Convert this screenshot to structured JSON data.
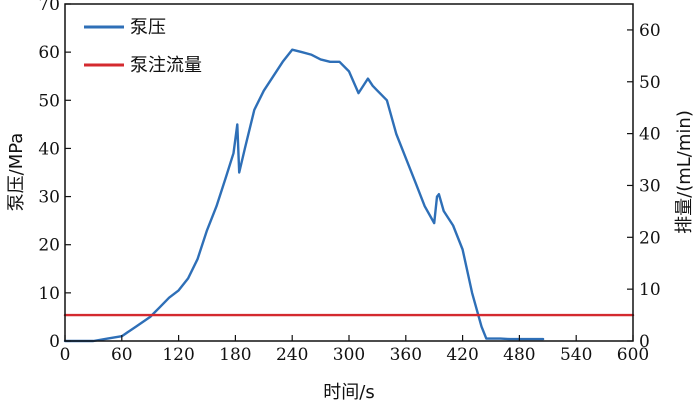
{
  "chart_data": {
    "type": "line",
    "xlabel": "时间/s",
    "ylabel": "泵压/MPa",
    "y2label": "排量/(mL/min)",
    "xlim": [
      0,
      600
    ],
    "ylim": [
      0,
      70
    ],
    "y2lim": [
      0,
      65
    ],
    "x_ticks": [
      "0",
      "60",
      "120",
      "180",
      "240",
      "300",
      "360",
      "420",
      "480",
      "540",
      "600"
    ],
    "y_ticks": [
      "0",
      "10",
      "20",
      "30",
      "40",
      "50",
      "60",
      "70"
    ],
    "y2_ticks": [
      "0",
      "10",
      "20",
      "30",
      "40",
      "50",
      "60"
    ],
    "grid": false,
    "legend": "top-left",
    "series": [
      {
        "name": "泵压",
        "axis": "left",
        "color": "#2e6fb7",
        "x": [
          0,
          30,
          45,
          60,
          75,
          90,
          100,
          110,
          120,
          130,
          140,
          150,
          160,
          170,
          178,
          182,
          184,
          190,
          200,
          210,
          220,
          230,
          240,
          250,
          260,
          270,
          280,
          290,
          300,
          310,
          320,
          325,
          330,
          340,
          350,
          360,
          370,
          380,
          390,
          393,
          395,
          400,
          410,
          420,
          430,
          440,
          445,
          450,
          460,
          470,
          480,
          490,
          505
        ],
        "y": [
          0,
          0,
          0.5,
          1,
          3,
          5,
          7,
          9,
          10.5,
          13,
          17,
          23,
          28,
          34,
          39,
          45,
          35,
          40,
          48,
          52,
          55,
          58,
          60.5,
          60,
          59.5,
          58.5,
          58,
          58,
          56,
          51.5,
          54.5,
          53,
          52,
          50,
          43,
          38,
          33,
          28,
          24.5,
          30,
          30.5,
          27,
          24,
          19,
          10,
          3,
          0.5,
          0.5,
          0.5,
          0.4,
          0.4,
          0.4,
          0.4
        ]
      },
      {
        "name": "泵注流量",
        "axis": "right",
        "color": "#d42a2f",
        "x": [
          0,
          600
        ],
        "y": [
          5,
          5
        ]
      }
    ]
  }
}
